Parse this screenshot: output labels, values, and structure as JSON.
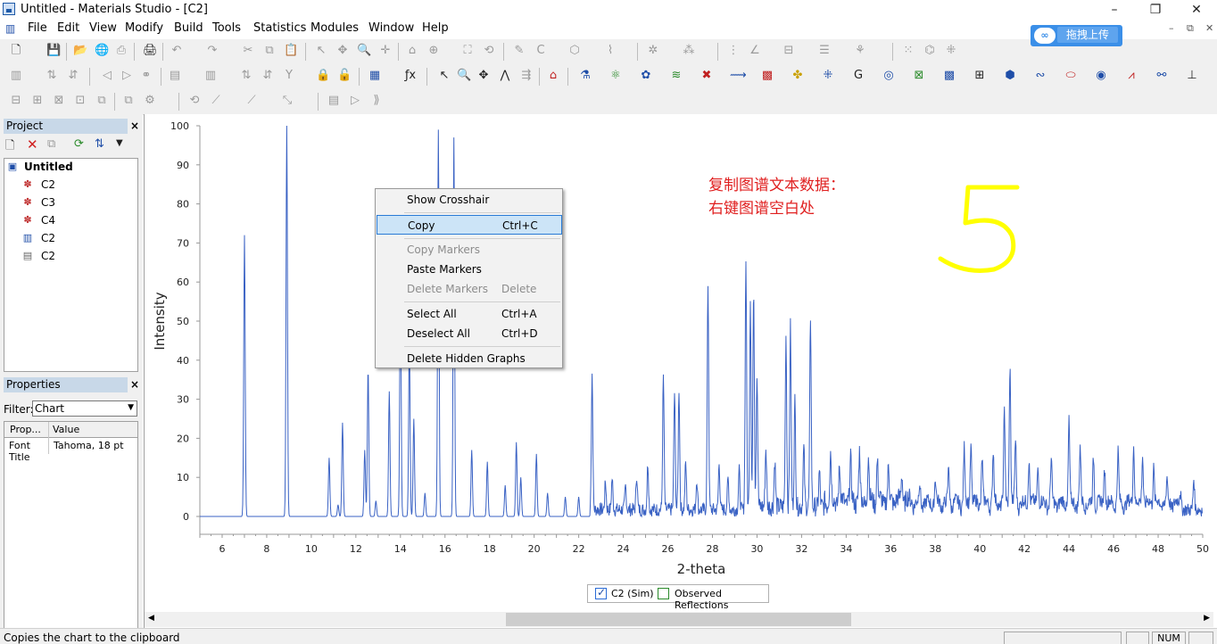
{
  "window": {
    "title": "Untitled - Materials Studio - [C2]",
    "controls": [
      "–",
      "❐",
      "✕"
    ],
    "mdi_controls": [
      "–",
      "⧉",
      "✕"
    ]
  },
  "menu": [
    "File",
    "Edit",
    "View",
    "Modify",
    "Build",
    "Tools",
    "Statistics",
    "Modules",
    "Window",
    "Help"
  ],
  "upload_widget": {
    "label": "拖拽上传"
  },
  "project_panel": {
    "title": "Project",
    "close": "×",
    "root": "Untitled",
    "items": [
      {
        "label": "C2",
        "icon": "crystal-structure-icon"
      },
      {
        "label": "C3",
        "icon": "crystal-structure-icon"
      },
      {
        "label": "C4",
        "icon": "crystal-structure-icon"
      },
      {
        "label": "C2",
        "icon": "chart-document-icon"
      },
      {
        "label": "C2",
        "icon": "text-document-icon"
      }
    ]
  },
  "properties_panel": {
    "title": "Properties",
    "close": "×",
    "filter_label": "Filter:",
    "filter_value": "Chart",
    "columns": [
      "Prop...",
      "Value"
    ],
    "rows": [
      {
        "prop": "Font Title",
        "value": "Tahoma, 18 pt"
      }
    ]
  },
  "context_menu": {
    "items": [
      {
        "label": "Show Crosshair",
        "shortcut": "",
        "state": "enabled"
      },
      {
        "label": "Copy",
        "shortcut": "Ctrl+C",
        "state": "selected"
      },
      {
        "label": "Copy Markers",
        "shortcut": "",
        "state": "disabled"
      },
      {
        "label": "Paste Markers",
        "shortcut": "",
        "state": "enabled"
      },
      {
        "label": "Delete Markers",
        "shortcut": "Delete",
        "state": "disabled"
      },
      {
        "label": "Select All",
        "shortcut": "Ctrl+A",
        "state": "enabled"
      },
      {
        "label": "Deselect All",
        "shortcut": "Ctrl+D",
        "state": "enabled"
      },
      {
        "label": "Delete Hidden Graphs",
        "shortcut": "",
        "state": "enabled"
      }
    ]
  },
  "annotation": {
    "line1": "复制图谱文本数据：",
    "line2": "右键图谱空白处",
    "step_number": "5",
    "text_color": "#e02020",
    "number_color": "#ffff00"
  },
  "legend": {
    "items": [
      {
        "label": "C2 (Sim)",
        "checked": true
      },
      {
        "label": "Observed Reflections",
        "checked": false
      }
    ]
  },
  "status": {
    "message": "Copies the chart to the clipboard",
    "num": "NUM"
  },
  "chart_data": {
    "type": "line",
    "title": "",
    "xlabel": "2-theta",
    "ylabel": "Intensity",
    "xlim": [
      5,
      50
    ],
    "ylim": [
      0,
      100
    ],
    "xticks": [
      6,
      8,
      10,
      12,
      14,
      16,
      18,
      20,
      22,
      24,
      26,
      28,
      30,
      32,
      34,
      36,
      38,
      40,
      42,
      44,
      46,
      48,
      50
    ],
    "yticks": [
      0,
      10,
      20,
      30,
      40,
      50,
      60,
      70,
      80,
      90,
      100
    ],
    "color": "#3a62c4",
    "series": [
      {
        "name": "C2 (Sim)",
        "peaks": [
          [
            7.0,
            72
          ],
          [
            8.9,
            100
          ],
          [
            10.8,
            15
          ],
          [
            11.2,
            3
          ],
          [
            11.4,
            24
          ],
          [
            12.4,
            17
          ],
          [
            12.55,
            38
          ],
          [
            12.9,
            4
          ],
          [
            13.5,
            32
          ],
          [
            14.0,
            62
          ],
          [
            14.4,
            45
          ],
          [
            14.6,
            25
          ],
          [
            15.1,
            6
          ],
          [
            15.7,
            99
          ],
          [
            16.4,
            97
          ],
          [
            17.2,
            17
          ],
          [
            17.9,
            14
          ],
          [
            18.7,
            8
          ],
          [
            19.2,
            19
          ],
          [
            19.4,
            10
          ],
          [
            20.1,
            16
          ],
          [
            20.6,
            6
          ],
          [
            21.4,
            5
          ],
          [
            22.0,
            5
          ],
          [
            22.6,
            35
          ],
          [
            23.2,
            7
          ],
          [
            23.5,
            8
          ],
          [
            24.1,
            6
          ],
          [
            24.6,
            9
          ],
          [
            25.1,
            12
          ],
          [
            25.8,
            34
          ],
          [
            26.3,
            30
          ],
          [
            26.5,
            31
          ],
          [
            26.8,
            12
          ],
          [
            27.3,
            8
          ],
          [
            27.8,
            58
          ],
          [
            28.3,
            12
          ],
          [
            28.7,
            8
          ],
          [
            29.2,
            10
          ],
          [
            29.5,
            64
          ],
          [
            29.7,
            54
          ],
          [
            29.85,
            57
          ],
          [
            30.0,
            35
          ],
          [
            30.4,
            15
          ],
          [
            30.8,
            12
          ],
          [
            31.3,
            44
          ],
          [
            31.5,
            46
          ],
          [
            31.7,
            27
          ],
          [
            32.1,
            15
          ],
          [
            32.4,
            49
          ],
          [
            32.8,
            9
          ],
          [
            33.3,
            12
          ],
          [
            33.7,
            8
          ],
          [
            34.2,
            10
          ],
          [
            34.6,
            12
          ],
          [
            35.0,
            11
          ],
          [
            35.4,
            10
          ],
          [
            35.9,
            8
          ],
          [
            36.5,
            7
          ],
          [
            37.3,
            5
          ],
          [
            38.0,
            6
          ],
          [
            38.6,
            9
          ],
          [
            39.3,
            14
          ],
          [
            39.6,
            16
          ],
          [
            40.1,
            12
          ],
          [
            40.6,
            13
          ],
          [
            41.1,
            23
          ],
          [
            41.35,
            36
          ],
          [
            41.6,
            16
          ],
          [
            42.2,
            12
          ],
          [
            42.6,
            10
          ],
          [
            43.2,
            11
          ],
          [
            44.0,
            21
          ],
          [
            44.5,
            14
          ],
          [
            45.1,
            12
          ],
          [
            45.6,
            10
          ],
          [
            46.2,
            13
          ],
          [
            46.9,
            16
          ],
          [
            47.3,
            13
          ],
          [
            47.8,
            10
          ],
          [
            48.4,
            6
          ],
          [
            49.0,
            4
          ],
          [
            49.6,
            8
          ]
        ]
      }
    ]
  }
}
